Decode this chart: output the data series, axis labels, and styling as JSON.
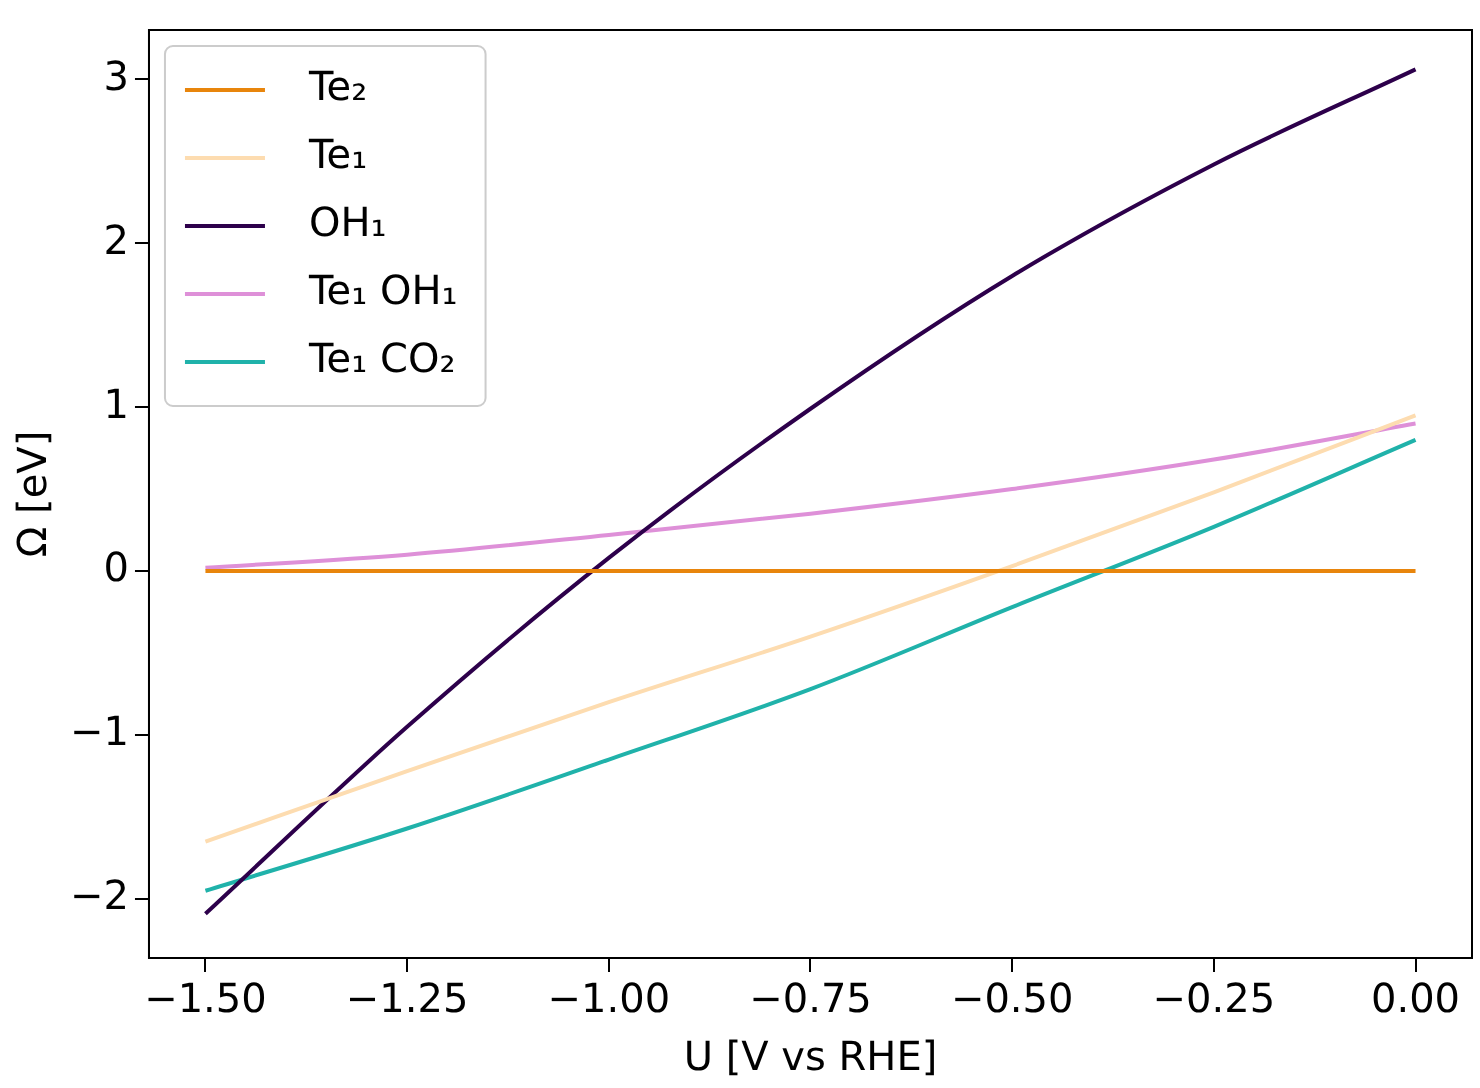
{
  "chart_data": {
    "type": "line",
    "xlabel": "U [V vs RHE]",
    "ylabel": "Ω [eV]",
    "x": [
      -1.5,
      -1.25,
      -1.0,
      -0.75,
      -0.5,
      -0.25,
      0.0
    ],
    "series": [
      {
        "name": "Te₂",
        "color": "#e8850c",
        "values": [
          0,
          0,
          0,
          0,
          0,
          0,
          0
        ]
      },
      {
        "name": "Te₁",
        "color": "#fddcb0",
        "values": [
          -1.65,
          -1.22,
          -0.8,
          -0.4,
          0.03,
          0.48,
          0.95
        ]
      },
      {
        "name": "OH₁",
        "color": "#2d004b",
        "values": [
          -2.09,
          -0.95,
          0.08,
          0.99,
          1.8,
          2.48,
          3.06
        ]
      },
      {
        "name": "Te₁ OH₁",
        "color": "#de90d8",
        "values": [
          0.02,
          0.1,
          0.22,
          0.35,
          0.5,
          0.68,
          0.9
        ]
      },
      {
        "name": "Te₁ CO₂",
        "color": "#20b2aa",
        "values": [
          -1.95,
          -1.57,
          -1.15,
          -0.72,
          -0.22,
          0.27,
          0.8
        ]
      }
    ],
    "xlim": [
      -1.57,
      0.07
    ],
    "ylim": [
      -2.36,
      3.3
    ],
    "xticks": [
      {
        "value": -1.5,
        "label": "−1.50"
      },
      {
        "value": -1.25,
        "label": "−1.25"
      },
      {
        "value": -1.0,
        "label": "−1.00"
      },
      {
        "value": -0.75,
        "label": "−0.75"
      },
      {
        "value": -0.5,
        "label": "−0.50"
      },
      {
        "value": -0.25,
        "label": "−0.25"
      },
      {
        "value": 0,
        "label": "0.00"
      }
    ],
    "yticks": [
      {
        "value": -2,
        "label": "−2"
      },
      {
        "value": -1,
        "label": "−1"
      },
      0,
      1,
      2,
      3
    ],
    "legend": "top left",
    "grid": false,
    "marker": "none",
    "line_style": "solid"
  }
}
